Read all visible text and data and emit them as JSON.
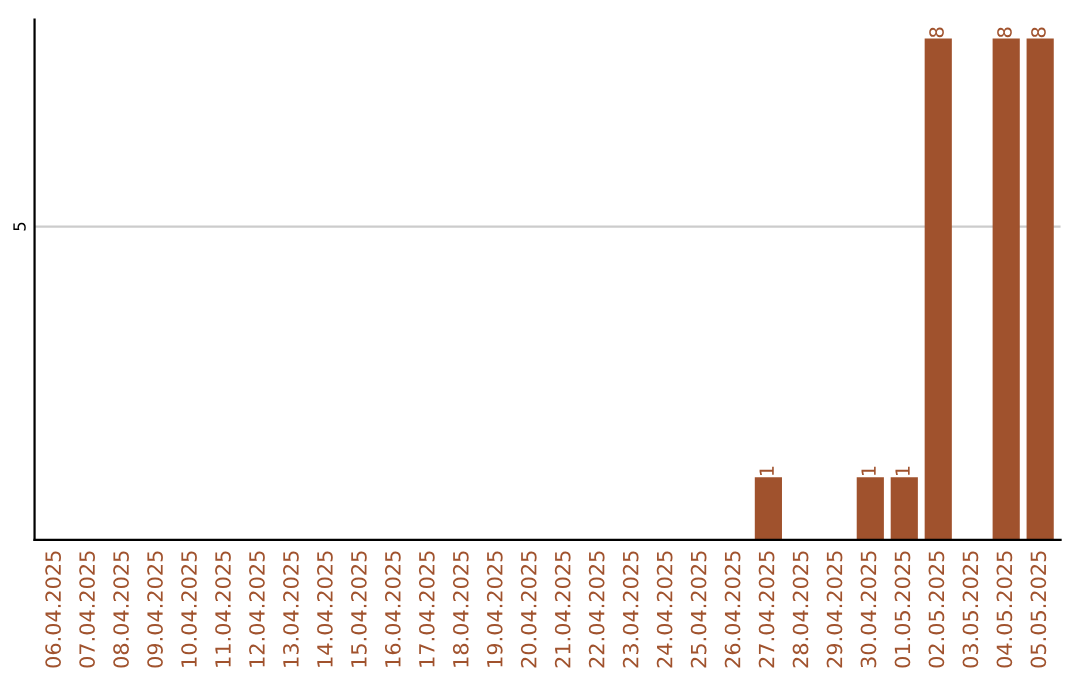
{
  "chart_data": {
    "type": "bar",
    "categories": [
      "06.04.2025",
      "07.04.2025",
      "08.04.2025",
      "09.04.2025",
      "10.04.2025",
      "11.04.2025",
      "12.04.2025",
      "13.04.2025",
      "14.04.2025",
      "15.04.2025",
      "16.04.2025",
      "17.04.2025",
      "18.04.2025",
      "19.04.2025",
      "20.04.2025",
      "21.04.2025",
      "22.04.2025",
      "23.04.2025",
      "24.04.2025",
      "25.04.2025",
      "26.04.2025",
      "27.04.2025",
      "28.04.2025",
      "29.04.2025",
      "30.04.2025",
      "01.05.2025",
      "02.05.2025",
      "03.05.2025",
      "04.05.2025",
      "05.05.2025"
    ],
    "values": [
      null,
      null,
      null,
      null,
      null,
      null,
      null,
      null,
      null,
      null,
      null,
      null,
      null,
      null,
      null,
      null,
      null,
      null,
      null,
      null,
      null,
      1,
      null,
      null,
      1,
      1,
      8,
      null,
      8,
      8
    ],
    "value_labels": [
      null,
      null,
      null,
      null,
      null,
      null,
      null,
      null,
      null,
      null,
      null,
      null,
      null,
      null,
      null,
      null,
      null,
      null,
      null,
      null,
      null,
      "1",
      null,
      null,
      "1",
      "1",
      "8",
      null,
      "8",
      "8"
    ],
    "color": "#a0522d",
    "ylim": [
      0,
      8.3
    ],
    "yticks": [
      5
    ],
    "grid": "y",
    "legend": false
  }
}
